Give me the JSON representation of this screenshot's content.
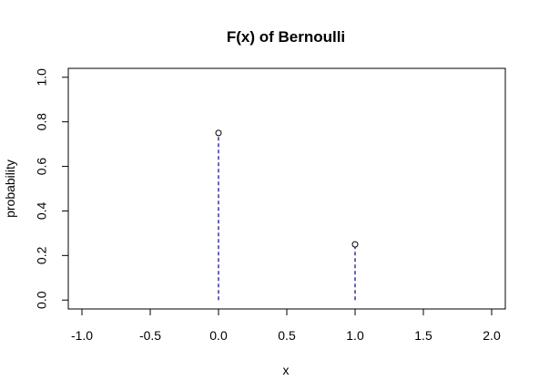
{
  "chart_data": {
    "type": "scatter",
    "title": "F(x) of Bernoulli",
    "xlabel": "x",
    "ylabel": "probability",
    "xlim": [
      -1.1,
      2.1
    ],
    "ylim": [
      -0.04,
      1.04
    ],
    "x_ticks": [
      -1.0,
      -0.5,
      0.0,
      0.5,
      1.0,
      1.5,
      2.0
    ],
    "x_tick_labels": [
      "-1.0",
      "-0.5",
      "0.0",
      "0.5",
      "1.0",
      "1.5",
      "2.0"
    ],
    "y_ticks": [
      0.0,
      0.2,
      0.4,
      0.6,
      0.8,
      1.0
    ],
    "y_tick_labels": [
      "0.0",
      "0.2",
      "0.4",
      "0.6",
      "0.8",
      "1.0"
    ],
    "x": [
      0,
      1
    ],
    "values": [
      0.75,
      0.25
    ],
    "stem_style": "dashed",
    "stem_color": "#00008b",
    "point_style": "open-circle",
    "grid": false
  }
}
